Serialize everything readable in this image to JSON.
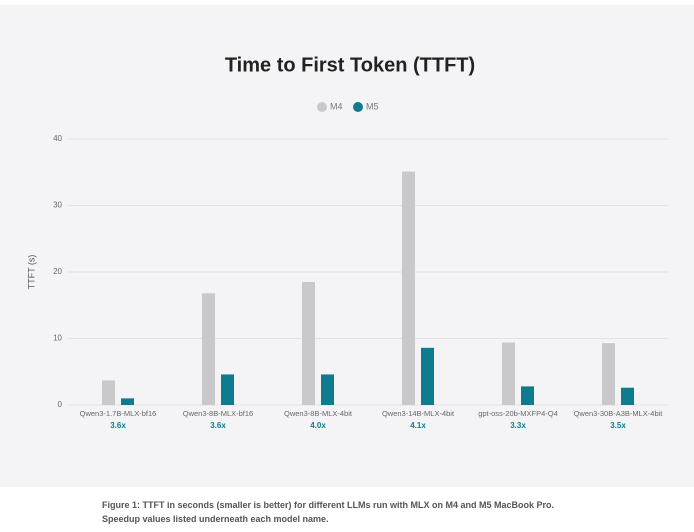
{
  "chart_data": {
    "type": "bar",
    "title": "Time to First Token (TTFT)",
    "y_label": "TTFT (s)",
    "categories": [
      "Qwen3-1.7B-MLX-bf16",
      "Qwen3-8B-MLX-bf16",
      "Qwen3-8B-MLX-4bit",
      "Qwen3-14B-MLX-4bit",
      "gpt-oss-20b-MXFP4-Q4",
      "Qwen3-30B-A3B-MLX-4bit"
    ],
    "speedups": [
      "3.6x",
      "3.6x",
      "4.0x",
      "4.1x",
      "3.3x",
      "3.5x"
    ],
    "series": [
      {
        "name": "M4",
        "color": "#c9c9cd",
        "values": [
          3.7,
          16.8,
          18.5,
          35.1,
          9.4,
          9.3
        ]
      },
      {
        "name": "M5",
        "color": "#0e7c8e",
        "values": [
          1.0,
          4.6,
          4.6,
          8.6,
          2.8,
          2.6
        ]
      }
    ],
    "ylim": [
      0,
      40
    ],
    "yticks": [
      0,
      10,
      20,
      30,
      40
    ],
    "grid": true
  },
  "caption": "Figure 1: TTFT in seconds (smaller is better) for different LLMs run with MLX on M4 and M5 MacBook Pro. Speedup values listed underneath each model name."
}
